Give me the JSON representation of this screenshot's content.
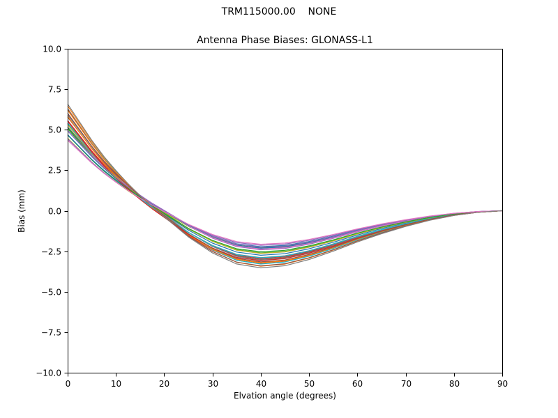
{
  "figure": {
    "suptitle": "TRM115000.00    NONE",
    "background_color": "#ffffff",
    "axes_color": "#000000"
  },
  "chart_data": {
    "type": "line",
    "title": "Antenna Phase Biases: GLONASS-L1",
    "xlabel": "Elvation angle (degrees)",
    "ylabel": "Bias (mm)",
    "xlim": [
      0,
      90
    ],
    "ylim": [
      -10,
      10
    ],
    "x_ticks": [
      0,
      10,
      20,
      30,
      40,
      50,
      60,
      70,
      80,
      90
    ],
    "y_ticks": [
      10.0,
      7.5,
      5.0,
      2.5,
      0.0,
      -2.5,
      -5.0,
      -7.5,
      -10.0
    ],
    "grid": false,
    "legend": "none",
    "x": [
      0,
      2.5,
      5,
      7.5,
      10,
      12.5,
      15,
      17.5,
      20,
      25,
      30,
      35,
      40,
      45,
      50,
      55,
      60,
      65,
      70,
      75,
      80,
      85,
      90
    ],
    "base_curve": [
      5.4,
      4.5,
      3.6,
      2.8,
      2.1,
      1.45,
      0.85,
      0.3,
      -0.2,
      -1.2,
      -2.0,
      -2.55,
      -2.75,
      -2.65,
      -2.35,
      -1.95,
      -1.5,
      -1.1,
      -0.75,
      -0.45,
      -0.22,
      -0.07,
      0.0
    ],
    "series_rule": "y = base_curve * scale + offset * (1 - x/90)",
    "series": [
      {
        "color": "#1f77b4",
        "scale": 1.0,
        "offset": 0.0
      },
      {
        "color": "#ff7f0e",
        "scale": 1.22,
        "offset": -0.12
      },
      {
        "color": "#2ca02c",
        "scale": 0.85,
        "offset": 0.08
      },
      {
        "color": "#d62728",
        "scale": 1.15,
        "offset": -0.2
      },
      {
        "color": "#9467bd",
        "scale": 0.92,
        "offset": 0.22
      },
      {
        "color": "#8c564b",
        "scale": 1.08,
        "offset": -0.05
      },
      {
        "color": "#e377c2",
        "scale": 0.98,
        "offset": 0.1
      },
      {
        "color": "#7f7f7f",
        "scale": 1.02,
        "offset": -0.15
      },
      {
        "color": "#bcbd22",
        "scale": 0.82,
        "offset": 0.05
      },
      {
        "color": "#17becf",
        "scale": 1.18,
        "offset": -0.08
      },
      {
        "color": "#1f77b4",
        "scale": 0.88,
        "offset": 0.18
      },
      {
        "color": "#ff7f0e",
        "scale": 1.12,
        "offset": -0.22
      },
      {
        "color": "#2ca02c",
        "scale": 0.95,
        "offset": 0.02
      },
      {
        "color": "#d62728",
        "scale": 1.05,
        "offset": -0.1
      },
      {
        "color": "#9467bd",
        "scale": 0.8,
        "offset": 0.12
      },
      {
        "color": "#8c564b",
        "scale": 1.2,
        "offset": -0.18
      },
      {
        "color": "#e377c2",
        "scale": 0.9,
        "offset": 0.2
      },
      {
        "color": "#7f7f7f",
        "scale": 1.1,
        "offset": -0.02
      },
      {
        "color": "#bcbd22",
        "scale": 0.97,
        "offset": 0.07
      },
      {
        "color": "#17becf",
        "scale": 1.03,
        "offset": -0.14
      },
      {
        "color": "#1f77b4",
        "scale": 0.84,
        "offset": 0.16
      },
      {
        "color": "#ff7f0e",
        "scale": 1.16,
        "offset": -0.06
      },
      {
        "color": "#2ca02c",
        "scale": 0.93,
        "offset": 0.04
      },
      {
        "color": "#d62728",
        "scale": 1.07,
        "offset": -0.25
      },
      {
        "color": "#9467bd",
        "scale": 0.87,
        "offset": 0.25
      },
      {
        "color": "#8c564b",
        "scale": 1.13,
        "offset": -0.09
      },
      {
        "color": "#e377c2",
        "scale": 0.78,
        "offset": 0.14
      },
      {
        "color": "#7f7f7f",
        "scale": 1.25,
        "offset": -0.16
      }
    ]
  }
}
